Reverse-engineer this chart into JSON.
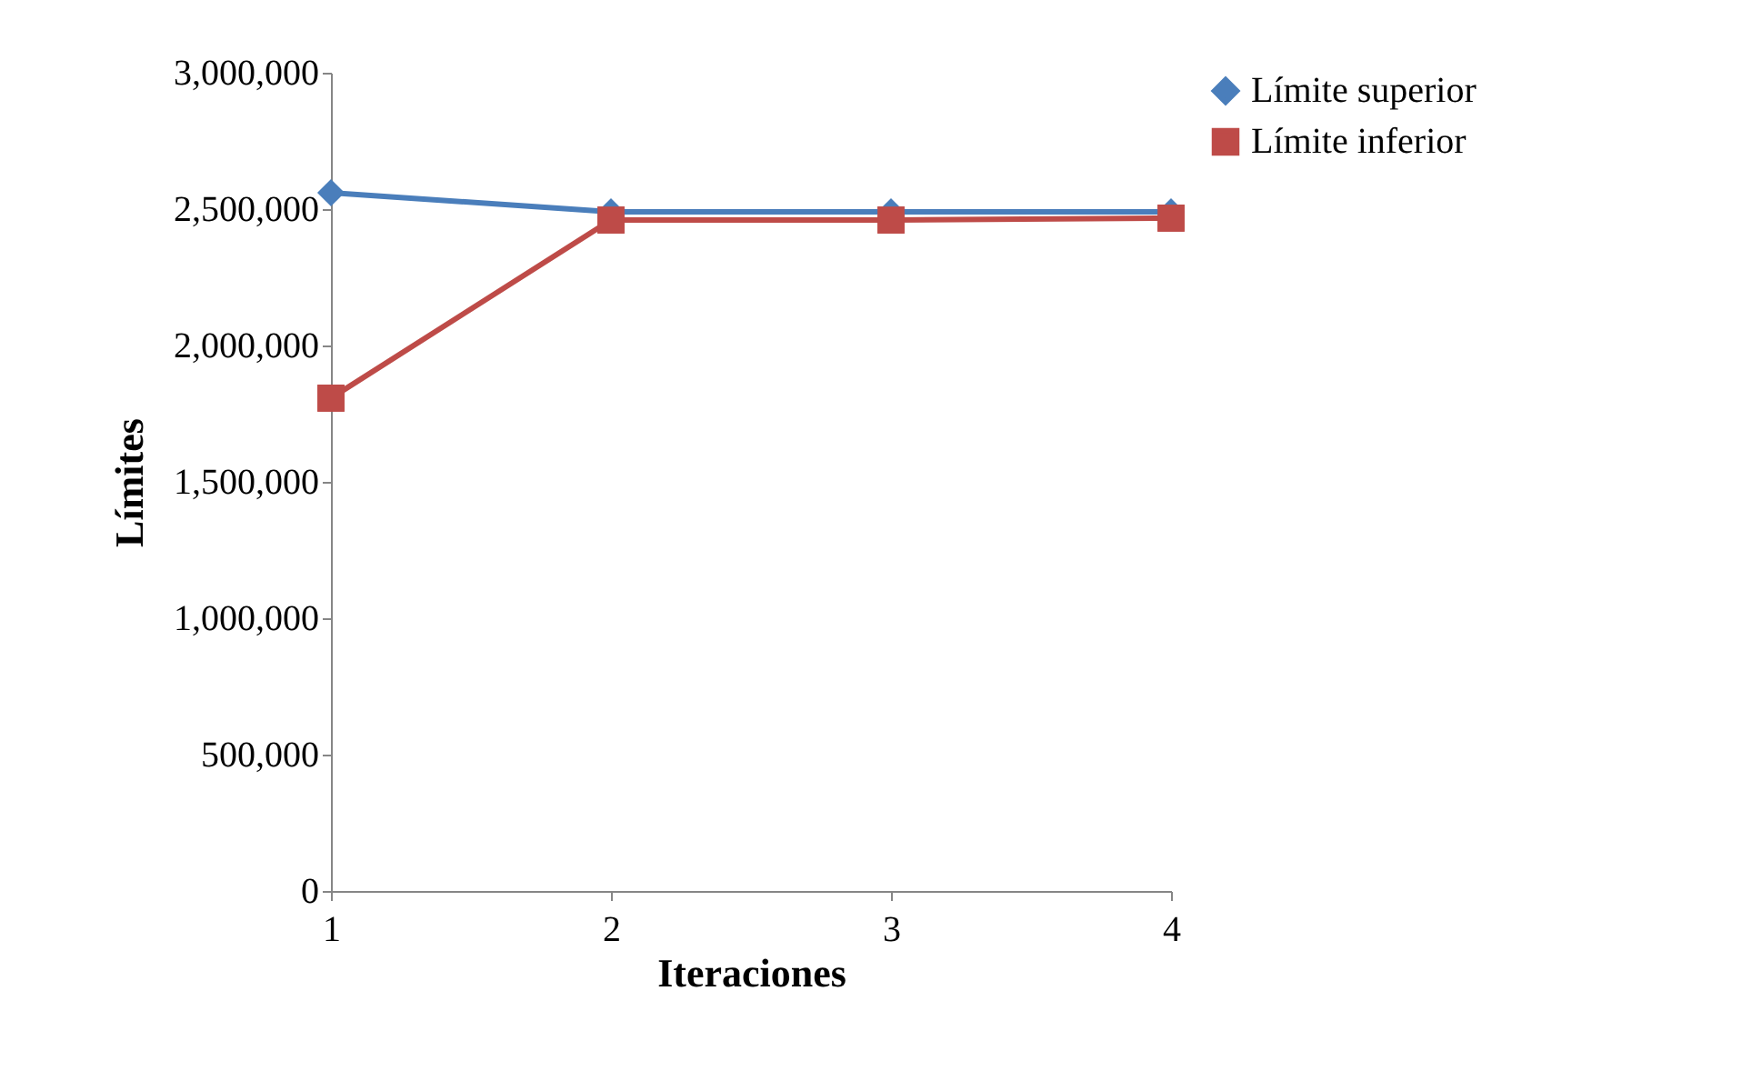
{
  "chart_data": {
    "type": "line",
    "xlabel": "Iteraciones",
    "ylabel": "Límites",
    "categories": [
      "1",
      "2",
      "3",
      "4"
    ],
    "ylim": [
      0,
      3000000
    ],
    "yticks": [
      {
        "value": 0,
        "label": "0"
      },
      {
        "value": 500000,
        "label": "500,000"
      },
      {
        "value": 1000000,
        "label": "1,000,000"
      },
      {
        "value": 1500000,
        "label": "1,500,000"
      },
      {
        "value": 2000000,
        "label": "2,000,000"
      },
      {
        "value": 2500000,
        "label": "2,500,000"
      },
      {
        "value": 3000000,
        "label": "3,000,000"
      }
    ],
    "grid": false,
    "legend": "right",
    "line_style": "solid",
    "series": [
      {
        "name": "Límite superior",
        "color": "#4a7ebb",
        "marker": "diamond",
        "values": [
          2560000,
          2490000,
          2490000,
          2490000
        ]
      },
      {
        "name": "Límite inferior",
        "color": "#be4b48",
        "marker": "square",
        "values": [
          1807000,
          2460000,
          2460000,
          2467000
        ]
      }
    ]
  }
}
